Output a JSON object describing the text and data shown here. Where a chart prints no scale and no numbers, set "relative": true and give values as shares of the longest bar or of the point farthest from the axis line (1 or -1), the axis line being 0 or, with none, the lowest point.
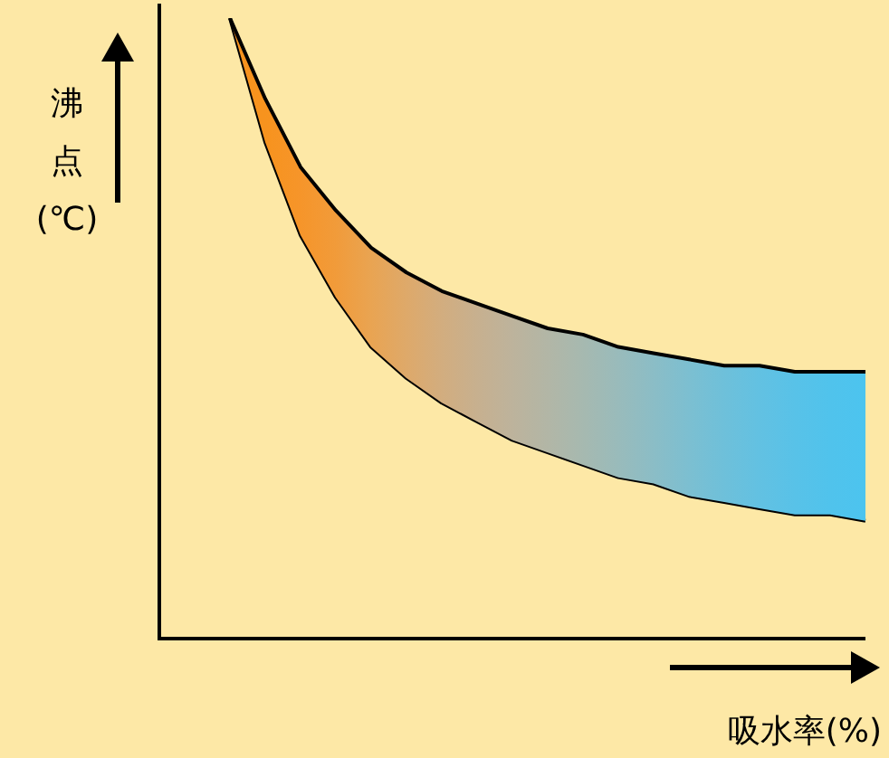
{
  "chart_data": {
    "type": "line",
    "relative": true,
    "xlabel": "吸水率(%)",
    "ylabel": "沸点(℃)",
    "categories": [
      null,
      null,
      null,
      null,
      null,
      null,
      null,
      null,
      null,
      null,
      null,
      null,
      null,
      null,
      null,
      null,
      null,
      null,
      null
    ],
    "series": [
      {
        "color": "#000000",
        "values": [
          1,
          0.87,
          0.76,
          0.69,
          0.63,
          0.59,
          0.56,
          0.54,
          0.52,
          0.5,
          0.49,
          0.47,
          0.46,
          0.45,
          0.44,
          0.44,
          0.43,
          0.43,
          0.43
        ]
      },
      {
        "color": "#000000",
        "values": [
          1,
          0.8,
          0.65,
          0.55,
          0.47,
          0.42,
          0.38,
          0.35,
          0.32,
          0.3,
          0.28,
          0.26,
          0.25,
          0.23,
          0.22,
          0.21,
          0.2,
          0.2,
          0.19
        ],
        "lower": [
          1,
          0.8,
          0.65,
          0.55,
          0.47,
          0.42,
          0.38,
          0.35,
          0.32,
          0.3,
          0.28,
          0.26,
          0.25,
          0.23,
          0.22,
          0.21,
          0.2,
          0.2,
          0.19
        ],
        "upper": [
          1,
          0.87,
          0.76,
          0.69,
          0.63,
          0.59,
          0.56,
          0.54,
          0.52,
          0.5,
          0.49,
          0.47,
          0.46,
          0.45,
          0.44,
          0.44,
          0.43,
          0.43,
          0.43
        ],
        "colors": [
          "#f7931e",
          "#f7931e",
          "#f6952a",
          "#f19b3a",
          "#e9a452",
          "#dea96a",
          "#d2ad7f",
          "#c7b08f",
          "#bdb39c",
          "#b2b6a6",
          "#a6b9b0",
          "#99bbbb",
          "#8bbdc6",
          "#7cbfd1",
          "#6ec0da",
          "#62c1e2",
          "#58c2e8",
          "#50c3ec",
          "#4cc4ef"
        ]
      }
    ]
  }
}
